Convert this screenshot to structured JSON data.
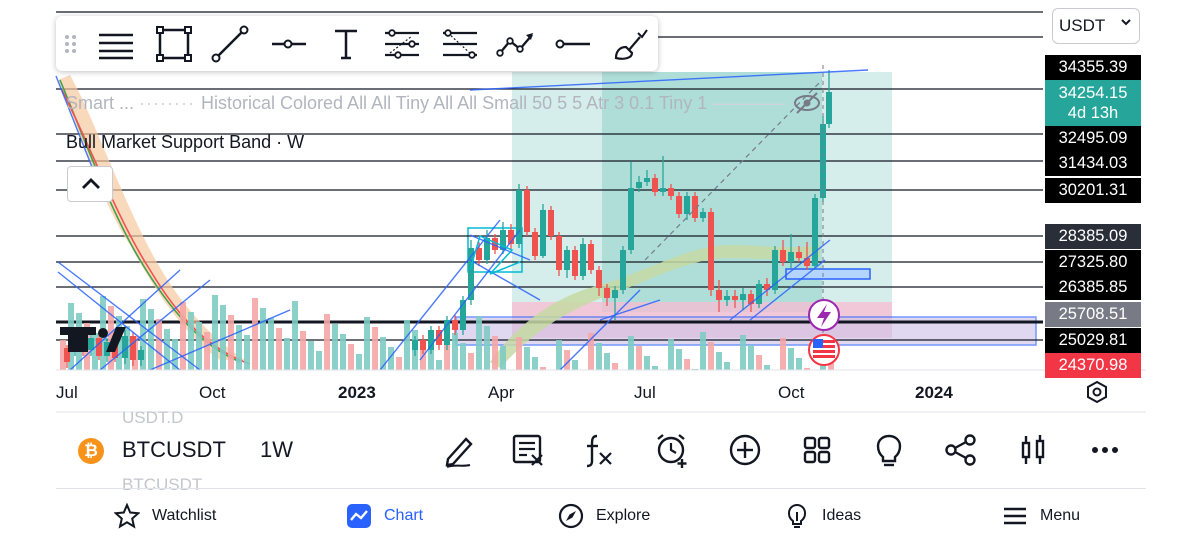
{
  "currency": {
    "selected": "USDT"
  },
  "legend": {
    "indicator_short": "Smart ...",
    "indicator_params": "Historical Colored All All Tiny All All Small 50 5 5 Atr 3 0.1 Tiny 1",
    "support_band": "Bull Market Support Band · W"
  },
  "price_scale": {
    "tags": [
      {
        "label": "34355.39",
        "color": "#000000"
      },
      {
        "label": "34254.15",
        "sub": "4d 13h",
        "color": "#26a69a"
      },
      {
        "label": "32495.09",
        "color": "#000000"
      },
      {
        "label": "31434.03",
        "color": "#000000"
      },
      {
        "label": "30201.31",
        "color": "#000000"
      },
      {
        "label": "28385.09",
        "color": "#2a2e39"
      },
      {
        "label": "27325.80",
        "color": "#000000"
      },
      {
        "label": "26385.85",
        "color": "#000000"
      },
      {
        "label": "25708.51",
        "color": "#787b86"
      },
      {
        "label": "25029.81",
        "color": "#000000"
      },
      {
        "label": "24370.98",
        "color": "#f23645"
      }
    ]
  },
  "time_axis": [
    "Jul",
    "Oct",
    "2023",
    "Apr",
    "Jul",
    "Oct",
    "2024"
  ],
  "toolbar": {
    "tools": [
      "drag-handle-icon",
      "horizontal-lines-icon",
      "rectangle-icon",
      "trend-line-icon",
      "horizontal-ray-icon",
      "text-icon",
      "parallel-channel-icon",
      "fib-retracement-icon",
      "path-icon",
      "horizontal-segment-icon",
      "brush-icon"
    ]
  },
  "ghost_symbol": {
    "top": "USDT.D",
    "bottom": "BTCUSDT"
  },
  "symbol": {
    "name": "BTCUSDT",
    "interval": "1W",
    "logo": "₿"
  },
  "actions": [
    "draw-icon",
    "indicator-list-icon",
    "fx-icon",
    "alert-add-icon",
    "plus-circle-icon",
    "apps-grid-icon",
    "idea-bulb-icon",
    "share-icon",
    "candle-style-icon",
    "more-icon"
  ],
  "nav": [
    {
      "label": "Watchlist",
      "icon": "star-icon"
    },
    {
      "label": "Chart",
      "icon": "chart-icon",
      "active": true
    },
    {
      "label": "Explore",
      "icon": "compass-icon"
    },
    {
      "label": "Ideas",
      "icon": "bulb-icon"
    },
    {
      "label": "Menu",
      "icon": "hamburger-icon"
    }
  ],
  "colors": {
    "bull": "#26a69a",
    "bear": "#ef5350",
    "accent": "#2962ff",
    "zone_green": "#b2dfdb",
    "zone_pink": "#f8bbd0",
    "zone_purple": "#d1c4e9"
  }
}
